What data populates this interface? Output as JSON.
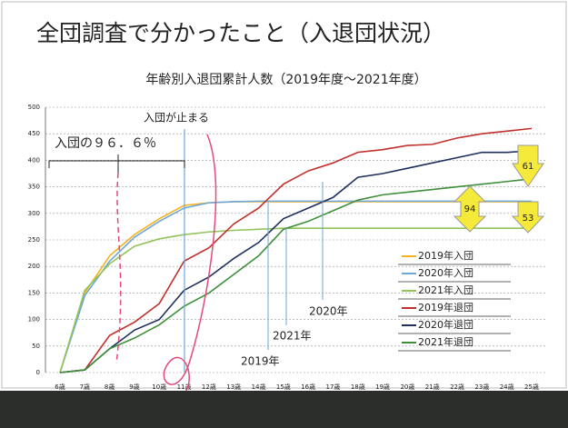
{
  "chart_data": {
    "type": "line",
    "page_title": "全団調査で分かったこと（入退団状況）",
    "title": "年齢別入退団累計人数（2019年度～2021年度）",
    "categories": [
      "6歳",
      "7歳",
      "8歳",
      "9歳",
      "10歳",
      "11歳",
      "12歳",
      "13歳",
      "14歳",
      "15歳",
      "16歳",
      "17歳",
      "18歳",
      "19歳",
      "20歳",
      "21歳",
      "22歳",
      "23歳",
      "24歳",
      "25歳"
    ],
    "ylim": [
      0,
      500
    ],
    "yticks": [
      0,
      50,
      100,
      150,
      200,
      250,
      300,
      350,
      400,
      450,
      500
    ],
    "grid": true,
    "legend": "lower right",
    "series": [
      {
        "name": "2019年入団",
        "color": "#f5b323",
        "values": [
          0,
          150,
          220,
          260,
          290,
          315,
          320,
          322,
          322,
          322,
          322,
          322,
          322,
          322,
          322,
          322,
          322,
          322,
          322,
          322
        ]
      },
      {
        "name": "2020年入団",
        "color": "#6ea6d8",
        "values": [
          0,
          145,
          210,
          255,
          285,
          310,
          320,
          322,
          323,
          323,
          323,
          323,
          323,
          323,
          323,
          323,
          323,
          323,
          323,
          323
        ]
      },
      {
        "name": "2021年入団",
        "color": "#92c45a",
        "values": [
          0,
          155,
          205,
          238,
          252,
          260,
          265,
          268,
          270,
          272,
          272,
          272,
          272,
          272,
          272,
          272,
          272,
          272,
          272,
          272
        ]
      },
      {
        "name": "2019年退団",
        "color": "#c0302c",
        "values": [
          0,
          5,
          70,
          95,
          130,
          210,
          235,
          280,
          310,
          355,
          380,
          395,
          415,
          420,
          428,
          430,
          442,
          450,
          455,
          460
        ]
      },
      {
        "name": "2020年退団",
        "color": "#1f2f5e",
        "values": [
          0,
          5,
          45,
          80,
          100,
          155,
          180,
          215,
          245,
          290,
          310,
          330,
          368,
          375,
          385,
          395,
          405,
          415,
          415,
          418
        ]
      },
      {
        "name": "2021年退団",
        "color": "#3f8f3a",
        "values": [
          0,
          5,
          45,
          65,
          90,
          125,
          150,
          185,
          220,
          270,
          285,
          305,
          325,
          335,
          340,
          345,
          350,
          355,
          360,
          365
        ]
      }
    ],
    "annotations": [
      "入団が止まる",
      "入団の９６．６％",
      "2019年",
      "2020年",
      "2021年",
      "61",
      "94",
      "53"
    ]
  }
}
